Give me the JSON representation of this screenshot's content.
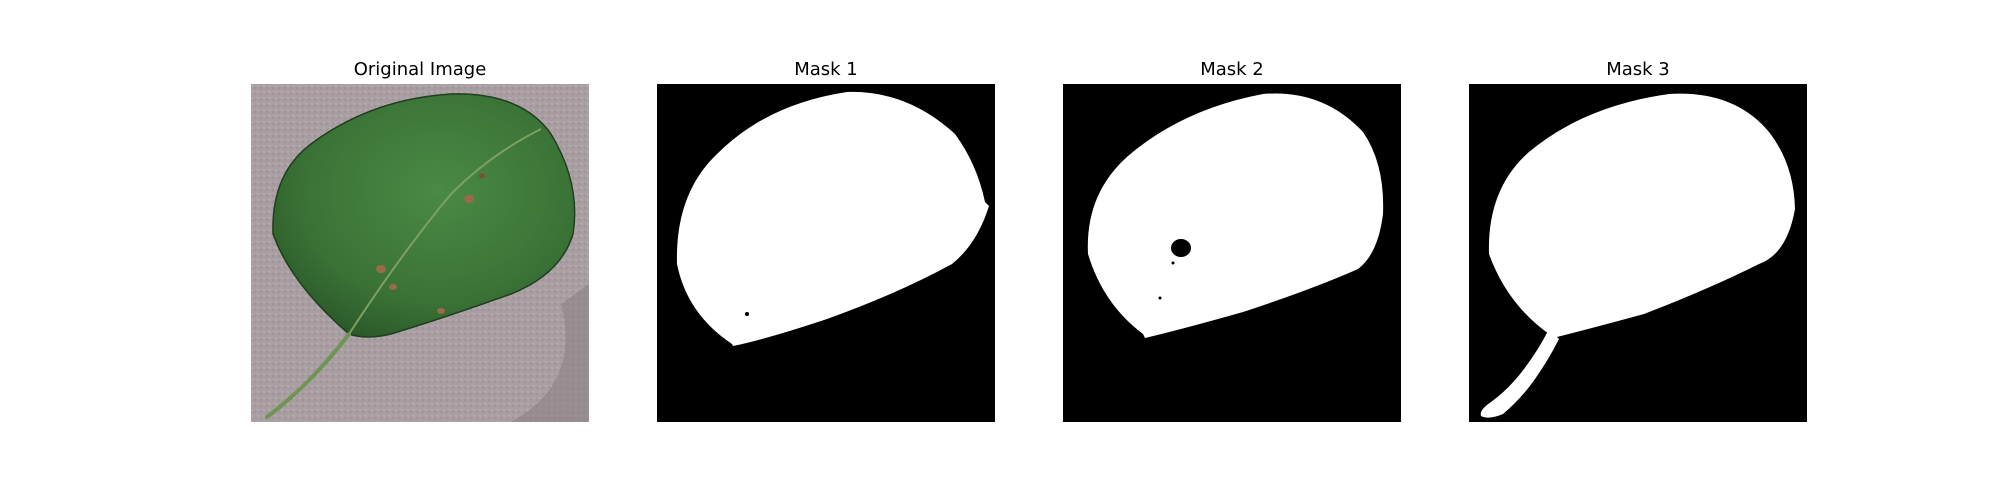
{
  "figure": {
    "panels": [
      {
        "title": "Original Image"
      },
      {
        "title": "Mask 1"
      },
      {
        "title": "Mask 2"
      },
      {
        "title": "Mask 3"
      }
    ]
  },
  "colors": {
    "background": "#a89ea2",
    "leaf": "#3f7a3a",
    "leaf_dark": "#2f5e2c",
    "vein": "#8fae6e",
    "spot": "#9a6a4a",
    "mask_foreground": "#ffffff",
    "mask_background": "#000000"
  }
}
